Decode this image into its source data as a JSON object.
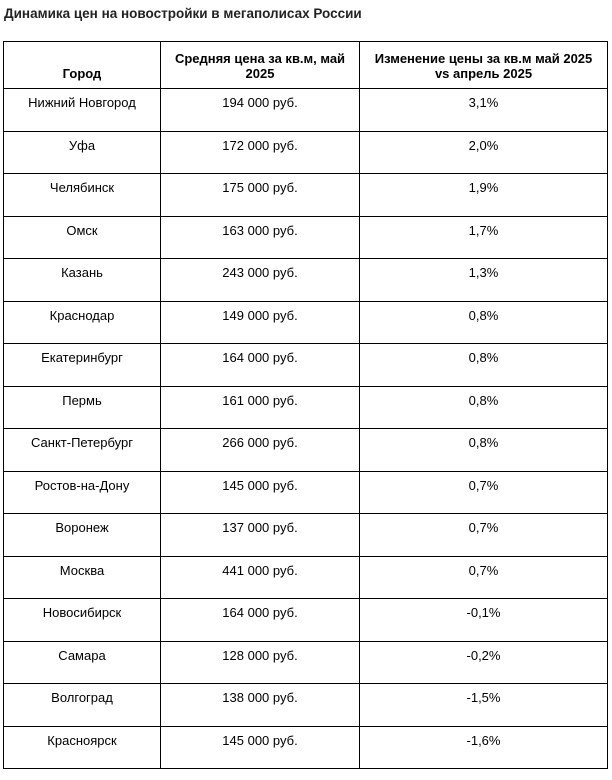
{
  "page": {
    "title": "Динамика цен на новостройки в мегаполисах России"
  },
  "chart_data": {
    "type": "table",
    "title": "Динамика цен на новостройки в мегаполисах России",
    "columns": [
      "Город",
      "Средняя цена за кв.м, май 2025",
      "Изменение цены за кв.м май 2025 vs апрель 2025"
    ],
    "rows": [
      {
        "city": "Нижний Новгород",
        "price": "194 000 руб.",
        "change": "3,1%"
      },
      {
        "city": "Уфа",
        "price": "172 000 руб.",
        "change": "2,0%"
      },
      {
        "city": "Челябинск",
        "price": "175 000 руб.",
        "change": "1,9%"
      },
      {
        "city": "Омск",
        "price": "163 000 руб.",
        "change": "1,7%"
      },
      {
        "city": "Казань",
        "price": "243 000 руб.",
        "change": "1,3%"
      },
      {
        "city": "Краснодар",
        "price": "149 000 руб.",
        "change": "0,8%"
      },
      {
        "city": "Екатеринбург",
        "price": "164 000 руб.",
        "change": "0,8%"
      },
      {
        "city": "Пермь",
        "price": "161 000 руб.",
        "change": "0,8%"
      },
      {
        "city": "Санкт-Петербург",
        "price": "266 000 руб.",
        "change": "0,8%"
      },
      {
        "city": "Ростов-на-Дону",
        "price": "145 000 руб.",
        "change": "0,7%"
      },
      {
        "city": "Воронеж",
        "price": "137 000 руб.",
        "change": "0,7%"
      },
      {
        "city": "Москва",
        "price": "441 000 руб.",
        "change": "0,7%"
      },
      {
        "city": "Новосибирск",
        "price": "164 000 руб.",
        "change": "-0,1%"
      },
      {
        "city": "Самара",
        "price": "128 000 руб.",
        "change": "-0,2%"
      },
      {
        "city": "Волгоград",
        "price": "138 000 руб.",
        "change": "-1,5%"
      },
      {
        "city": "Красноярск",
        "price": "145 000 руб.",
        "change": "-1,6%"
      }
    ],
    "units": {
      "price": "руб./кв.м",
      "change": "% месяц к месяцу"
    },
    "colors": {
      "border": "#000000",
      "text": "#000000",
      "title": "#222222",
      "background": "#ffffff"
    }
  }
}
